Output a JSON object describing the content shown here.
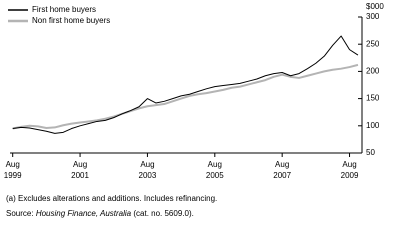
{
  "chart_data": {
    "type": "line",
    "y_unit": "$000",
    "x": [
      1999.58,
      1999.83,
      2000.08,
      2000.33,
      2000.58,
      2000.83,
      2001.08,
      2001.33,
      2001.58,
      2001.83,
      2002.08,
      2002.33,
      2002.58,
      2002.83,
      2003.08,
      2003.33,
      2003.58,
      2003.83,
      2004.08,
      2004.33,
      2004.58,
      2004.83,
      2005.08,
      2005.33,
      2005.58,
      2005.83,
      2006.08,
      2006.33,
      2006.58,
      2006.83,
      2007.08,
      2007.33,
      2007.58,
      2007.83,
      2008.08,
      2008.33,
      2008.58,
      2008.83,
      2009.08,
      2009.33,
      2009.58,
      2009.83
    ],
    "series": [
      {
        "name": "First home buyers",
        "color": "#000000",
        "width": 1,
        "values": [
          95,
          97,
          96,
          93,
          90,
          86,
          88,
          95,
          100,
          104,
          108,
          110,
          115,
          122,
          128,
          135,
          150,
          142,
          145,
          150,
          155,
          158,
          163,
          168,
          172,
          174,
          176,
          178,
          182,
          186,
          192,
          196,
          198,
          192,
          196,
          205,
          215,
          228,
          248,
          265,
          240,
          230
        ]
      },
      {
        "name": "Non first home buyers",
        "color": "#b4b4b4",
        "width": 2,
        "values": [
          95,
          98,
          100,
          99,
          96,
          97,
          101,
          104,
          106,
          108,
          110,
          113,
          117,
          122,
          127,
          132,
          136,
          138,
          140,
          145,
          150,
          155,
          158,
          160,
          163,
          166,
          170,
          172,
          176,
          180,
          184,
          190,
          194,
          190,
          188,
          192,
          196,
          200,
          203,
          205,
          208,
          212
        ]
      }
    ],
    "xlim": [
      1999.5,
      2009.95
    ],
    "xticks": [
      {
        "value": 1999.58,
        "label": [
          "Aug",
          "1999"
        ]
      },
      {
        "value": 2001.58,
        "label": [
          "Aug",
          "2001"
        ]
      },
      {
        "value": 2003.58,
        "label": [
          "Aug",
          "2003"
        ]
      },
      {
        "value": 2005.58,
        "label": [
          "Aug",
          "2005"
        ]
      },
      {
        "value": 2007.58,
        "label": [
          "Aug",
          "2007"
        ]
      },
      {
        "value": 2009.58,
        "label": [
          "Aug",
          "2009"
        ]
      }
    ],
    "ylim": [
      50,
      300
    ],
    "yticks": [
      50,
      100,
      150,
      200,
      250,
      300
    ],
    "notes": [
      "(a) Excludes alterations and additions. Includes refinancing."
    ],
    "source": {
      "prefix": "Source:",
      "title": "Housing Finance, Australia",
      "suffix": "(cat. no. 5609.0)."
    }
  }
}
